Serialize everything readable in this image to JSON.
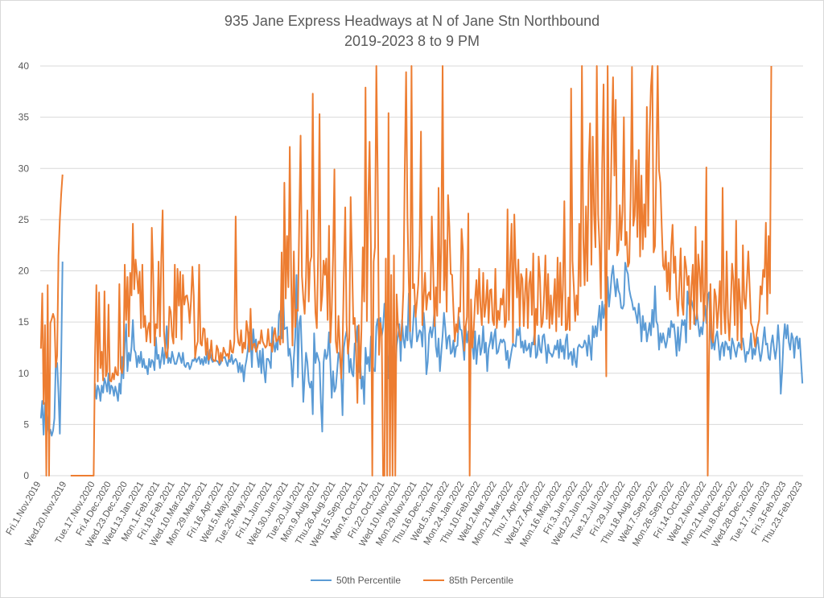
{
  "chart_data": {
    "type": "line",
    "title": "935 Jane Express Headways at N of Jane Stn Northbound",
    "subtitle": "2019-2023 8 to 9 PM",
    "ylim": [
      0,
      40
    ],
    "yticks": [
      0,
      5,
      10,
      15,
      20,
      25,
      30,
      35,
      40
    ],
    "grid": true,
    "legend_position": "bottom",
    "x_tick_labels": [
      "Fri.1.Nov.2019",
      "Wed.20.Nov.2019",
      "Tue.17.Nov.2020",
      "Fri.4.Dec.2020",
      "Wed.23.Dec.2020",
      "Wed.13.Jan.2021",
      "Mon.1.Feb.2021",
      "Fri.19.Feb.2021",
      "Wed.10.Mar.2021",
      "Mon.29.Mar.2021",
      "Fri.16.Apr.2021",
      "Wed.5.May.2021",
      "Tue.25.May.2021",
      "Fri.11.Jun.2021",
      "Wed.30.Jun.2021",
      "Tue.20.Jul.2021",
      "Mon.9.Aug.2021",
      "Thu.26.Aug.2021",
      "Wed.15.Sep.2021",
      "Mon.4.Oct.2021",
      "Fri.22.Oct.2021",
      "Wed.10.Nov.2021",
      "Mon.29.Nov.2021",
      "Thu.16.Dec.2021",
      "Wed.5.Jan.2022",
      "Mon.24.Jan.2022",
      "Thu.10.Feb.2022",
      "Wed.2.Mar.2022",
      "Mon.21.Mar.2022",
      "Thu.7.Apr.2022",
      "Wed.27.Apr.2022",
      "Mon.16.May.2022",
      "Fri.3.Jun.2022",
      "Wed.22.Jun.2022",
      "Tue.12.Jul.2022",
      "Fri.29.Jul.2022",
      "Thu.18.Aug.2022",
      "Wed.7.Sep.2022",
      "Mon.26.Sep.2022",
      "Fri.14.Oct.2022",
      "Wed.2.Nov.2022",
      "Mon.21.Nov.2022",
      "Thu.8.Dec.2022",
      "Wed.28.Dec.2022",
      "Tue.17.Jan.2023",
      "Fri.3.Feb.2023",
      "Thu.23.Feb.2023"
    ],
    "series": [
      {
        "name": "50th Percentile",
        "color": "#5b9bd5",
        "values": [
          5.6,
          7.3,
          4.0,
          7.1,
          6.5,
          5.0,
          3.9,
          4.5,
          3.9,
          4.4,
          5.6,
          11.0,
          11.0,
          8.0,
          4.1,
          11.5,
          20.9,
          null,
          null,
          null,
          null,
          null,
          null,
          null,
          null,
          null,
          null,
          null,
          null,
          null,
          null,
          null,
          null,
          null,
          null,
          null,
          null,
          null,
          null,
          null,
          9.0,
          7.5,
          8.8,
          8.4,
          7.3,
          8.8,
          8.1,
          9.5,
          9.0,
          8.2,
          10.0,
          8.0,
          8.8,
          8.6,
          7.8,
          8.7,
          8.1,
          7.3,
          9.0,
          8.0,
          11.6,
          9.5,
          12.9,
          14.8,
          10.2,
          12.0,
          11.2,
          12.6,
          15.2,
          12.3,
          12.0,
          10.6,
          11.7,
          11.0,
          12.1,
          10.6,
          11.4,
          10.5,
          10.7,
          9.9,
          11.4,
          10.6,
          11.3,
          11.1,
          10.3,
          13.5,
          11.4,
          11.8,
          10.5,
          11.4,
          12.5,
          10.9,
          12.3,
          14.6,
          11.0,
          11.5,
          11.0,
          12.1,
          11.5,
          10.9,
          10.9,
          11.4,
          12.0,
          11.5,
          11.0,
          12.0,
          10.8,
          10.6,
          11.0,
          11.0,
          10.4,
          10.7,
          11.3,
          11.2,
          11.6,
          11.1,
          11.4,
          11.6,
          10.9,
          11.4,
          10.8,
          11.6,
          11.0,
          12.1,
          10.9,
          12.3,
          11.4,
          11.1,
          11.2,
          11.3,
          11.2,
          11.1,
          10.8,
          11.0,
          11.6,
          11.5,
          11.6,
          11.1,
          10.7,
          11.4,
          11.1,
          11.8,
          10.9,
          11.2,
          11.4,
          11.1,
          10.1,
          11.0,
          10.1,
          10.8,
          9.2,
          10.6,
          11.3,
          12.3,
          14.0,
          13.2,
          10.6,
          14.3,
          12.5,
          13.3,
          11.6,
          10.6,
          12.2,
          10.0,
          12.4,
          10.3,
          9.1,
          11.4,
          11.4,
          11.1,
          10.5,
          14.5,
          13.1,
          12.1,
          13.0,
          12.3,
          15.7,
          16.1,
          13.4,
          18.6,
          14.3,
          14.4,
          14.5,
          11.7,
          12.4,
          11.2,
          8.7,
          11.5,
          13.5,
          19.6,
          9.6,
          14.9,
          15.6,
          11.7,
          7.2,
          9.7,
          12.0,
          11.1,
          9.2,
          8.6,
          9.2,
          6.0,
          13.9,
          11.0,
          12.0,
          11.5,
          11.0,
          7.1,
          4.3,
          11.1,
          12.3,
          11.4,
          11.8,
          14.0,
          11.0,
          7.6,
          10.2,
          8.2,
          8.6,
          10.2,
          12.0,
          11.5,
          9.8,
          5.9,
          12.5,
          13.5,
          14.1,
          12.9,
          10.1,
          11.4,
          10.0,
          9.7,
          12.9,
          13.0,
          14.6,
          10.1,
          11.8,
          8.5,
          9.7,
          7.0,
          12.5,
          10.9,
          11.6,
          10.2,
          13.6,
          11.0,
          10.3,
          10.2,
          14.6,
          15.3,
          13.5,
          15.4,
          13.6,
          14.5,
          16.8,
          14.8,
          12.4,
          9.5,
          14.0,
          12.5,
          12.2,
          13.1,
          9.6,
          12.7,
          13.6,
          14.8,
          11.2,
          15.2,
          13.3,
          12.5,
          14.6,
          13.2,
          17.8,
          13.3,
          12.5,
          14.3,
          16.6,
          15.9,
          13.1,
          13.6,
          14.2,
          14.0,
          12.6,
          15.9,
          14.2,
          9.9,
          11.1,
          13.8,
          14.5,
          13.5,
          14.4,
          16.3,
          12.6,
          11.6,
          13.4,
          10.2,
          12.0,
          13.7,
          15.9,
          14.4,
          12.4,
          13.5,
          13.7,
          11.9,
          12.1,
          13.2,
          11.6,
          12.6,
          12.7,
          15.5,
          14.3,
          14.2,
          12.9,
          11.3,
          14.6,
          13.0,
          14.1,
          11.8,
          13.4,
          12.7,
          11.4,
          14.1,
          10.9,
          12.7,
          13.7,
          11.8,
          12.5,
          14.6,
          12.0,
          13.0,
          10.2,
          12.4,
          13.0,
          14.0,
          12.4,
          13.6,
          14.3,
          11.9,
          12.1,
          12.8,
          13.3,
          13.0,
          13.3,
          13.0,
          11.3,
          12.2,
          10.5,
          11.4,
          12.2,
          12.9,
          12.7,
          12.6,
          14.3,
          13.7,
          14.5,
          12.5,
          13.1,
          12.0,
          13.2,
          12.2,
          12.4,
          12.9,
          11.6,
          13.0,
          12.8,
          14.0,
          11.5,
          11.8,
          13.7,
          12.3,
          12.0,
          13.6,
          13.8,
          12.6,
          11.0,
          12.8,
          12.0,
          11.9,
          11.6,
          12.0,
          12.7,
          12.3,
          13.2,
          11.5,
          13.3,
          12.1,
          12.7,
          11.4,
          13.2,
          13.8,
          11.4,
          11.9,
          12.1,
          10.8,
          12.4,
          11.2,
          10.6,
          12.5,
          12.8,
          12.6,
          12.5,
          12.6,
          13.2,
          12.9,
          11.7,
          13.7,
          12.7,
          11.3,
          14.6,
          13.5,
          14.6,
          13.6,
          15.2,
          16.6,
          14.2,
          17.0,
          15.4,
          16.7,
          15.2,
          19.4,
          16.5,
          17.9,
          19.6,
          20.5,
          18.8,
          17.5,
          19.2,
          18.1,
          17.7,
          16.4,
          16.3,
          16.7,
          20.8,
          20.1,
          19.7,
          18.2,
          17.5,
          17.0,
          16.2,
          16.4,
          15.7,
          14.9,
          16.8,
          15.4,
          13.1,
          15.6,
          14.2,
          14.9,
          13.1,
          14.0,
          14.9,
          13.7,
          16.2,
          14.5,
          18.5,
          15.1,
          14.7,
          12.3,
          13.9,
          13.0,
          13.9,
          13.2,
          12.5,
          13.2,
          14.4,
          13.5,
          15.1,
          14.5,
          14.8,
          13.5,
          11.7,
          14.5,
          12.2,
          13.7,
          15.2,
          14.7,
          15.2,
          13.0,
          18.0,
          16.8,
          16.4,
          17.1,
          16.5,
          15.9,
          14.7,
          15.9,
          14.8,
          13.6,
          14.5,
          13.8,
          15.4,
          16.6,
          14.9,
          17.5,
          17.9,
          14.3,
          12.4,
          13.3,
          12.3,
          13.6,
          14.1,
          12.8,
          11.3,
          12.6,
          13.0,
          11.7,
          13.1,
          12.9,
          12.3,
          12.6,
          11.4,
          13.4,
          12.9,
          12.2,
          11.6,
          12.5,
          13.0,
          12.5,
          13.0,
          13.4,
          12.3,
          11.1,
          12.1,
          11.9,
          12.5,
          13.9,
          11.4,
          12.4,
          11.8,
          12.8,
          13.5,
          12.2,
          11.2,
          12.0,
          13.3,
          14.5,
          12.8,
          12.9,
          11.5,
          11.3,
          12.9,
          13.7,
          12.4,
          11.4,
          12.5,
          14.7,
          12.7,
          8.0,
          10.1,
          13.2,
          14.8,
          13.4,
          14.7,
          13.0,
          12.3,
          13.9,
          13.4,
          11.5,
          13.4,
          13.6,
          12.4,
          13.4,
          11.2,
          9.0
        ]
      },
      {
        "name": "85th Percentile",
        "color": "#ed7d31",
        "values": [
          12.4,
          17.8,
          7.0,
          14.7,
          0.0,
          18.6,
          0.0,
          14.9,
          15.3,
          15.8,
          15.3,
          10.6,
          11.7,
          21.5,
          25.0,
          27.5,
          29.4,
          null,
          null,
          null,
          null,
          null,
          0.0,
          0.0,
          0.0,
          0.0,
          0.0,
          0.0,
          0.0,
          0.0,
          0.0,
          0.0,
          0.0,
          0.0,
          0.0,
          0.0,
          0.0,
          0.0,
          0.0,
          0.0,
          11.6,
          18.6,
          9.2,
          17.9,
          10.5,
          12.1,
          9.3,
          18.0,
          9.7,
          10.2,
          16.7,
          9.3,
          9.2,
          10.0,
          9.4,
          10.6,
          9.9,
          9.8,
          18.7,
          10.5,
          10.0,
          10.9,
          20.6,
          15.2,
          19.4,
          13.6,
          19.8,
          17.6,
          24.6,
          18.2,
          21.1,
          19.6,
          17.8,
          19.9,
          14.4,
          20.6,
          14.5,
          15.6,
          13.1,
          14.4,
          14.9,
          13.0,
          24.2,
          19.6,
          12.7,
          14.8,
          14.4,
          20.9,
          13.6,
          21.3,
          25.9,
          14.1,
          12.2,
          11.5,
          12.5,
          16.5,
          16.0,
          13.7,
          12.9,
          20.6,
          13.5,
          20.2,
          16.6,
          19.9,
          13.3,
          19.6,
          16.7,
          17.5,
          17.6,
          16.7,
          14.9,
          17.1,
          20.4,
          17.6,
          11.5,
          12.6,
          13.1,
          20.6,
          12.9,
          12.7,
          14.4,
          14.3,
          11.8,
          13.4,
          11.3,
          11.6,
          13.2,
          11.4,
          11.2,
          11.2,
          12.7,
          12.3,
          11.0,
          12.0,
          11.2,
          12.5,
          12.1,
          11.7,
          11.9,
          11.4,
          13.2,
          12.1,
          12.0,
          13.1,
          25.3,
          14.4,
          13.0,
          12.7,
          14.2,
          12.0,
          13.0,
          12.4,
          15.1,
          14.1,
          12.1,
          16.3,
          12.3,
          12.8,
          12.9,
          12.1,
          12.5,
          13.1,
          12.9,
          14.2,
          13.1,
          12.8,
          12.5,
          12.7,
          14.3,
          12.7,
          12.9,
          12.1,
          13.7,
          14.4,
          13.1,
          13.3,
          13.6,
          12.8,
          21.8,
          13.0,
          28.6,
          17.3,
          23.4,
          18.4,
          32.1,
          19.4,
          12.7,
          21.9,
          14.5,
          16.2,
          16.1,
          24.8,
          33.2,
          19.5,
          17.3,
          15.8,
          19.4,
          25.9,
          17.0,
          20.8,
          21.4,
          37.3,
          20.7,
          15.9,
          14.4,
          21.9,
          35.3,
          16.1,
          17.6,
          21.0,
          19.6,
          21.2,
          15.2,
          24.4,
          13.0,
          16.1,
          21.5,
          29.9,
          13.1,
          12.0,
          15.6,
          12.6,
          9.5,
          12.5,
          19.7,
          26.2,
          14.8,
          11.9,
          13.4,
          27.2,
          21.1,
          14.8,
          15.4,
          12.3,
          7.1,
          14.7,
          9.5,
          14.4,
          22.3,
          17.0,
          37.9,
          15.1,
          26.6,
          32.6,
          22.0,
          0.0,
          20.9,
          22.3,
          44.8,
          29.2,
          11.8,
          14.9,
          13.8,
          0.0,
          0.0,
          21.2,
          0.0,
          35.4,
          0.0,
          19.6,
          0.0,
          21.5,
          0.0,
          17.7,
          14.8,
          13.7,
          13.2,
          14.8,
          18.1,
          29.7,
          39.4,
          25.3,
          18.9,
          14.1,
          40.4,
          18.3,
          18.7,
          15.5,
          17.0,
          18.7,
          22.5,
          33.6,
          14.7,
          17.4,
          19.8,
          16.2,
          17.6,
          17.9,
          17.2,
          25.3,
          20.4,
          14.6,
          18.4,
          15.6,
          28.1,
          16.9,
          22.6,
          41.3,
          18.1,
          23.0,
          16.0,
          27.4,
          24.3,
          19.7,
          19.6,
          16.2,
          13.1,
          14.8,
          14.0,
          16.4,
          16.0,
          24.1,
          22.0,
          12.2,
          14.5,
          15.5,
          25.6,
          0.0,
          17.2,
          12.5,
          14.3,
          17.2,
          19.1,
          15.8,
          20.2,
          16.5,
          14.7,
          19.8,
          15.5,
          16.8,
          19.1,
          14.9,
          18.1,
          18.2,
          15.2,
          14.7,
          20.2,
          14.4,
          16.1,
          15.2,
          17.3,
          16.7,
          18.2,
          14.5,
          15.1,
          26.0,
          15.2,
          20.8,
          24.6,
          13.0,
          25.5,
          20.4,
          17.4,
          21.1,
          14.6,
          19.7,
          19.2,
          14.6,
          17.9,
          20.2,
          14.4,
          18.8,
          19.9,
          15.7,
          21.7,
          12.8,
          16.3,
          14.7,
          21.4,
          19.3,
          14.5,
          15.0,
          17.6,
          21.5,
          15.3,
          19.7,
          14.4,
          17.6,
          14.8,
          16.9,
          19.2,
          14.1,
          21.3,
          15.5,
          20.8,
          14.7,
          18.7,
          26.8,
          14.2,
          14.3,
          17.4,
          14.2,
          37.8,
          21.0,
          18.4,
          15.1,
          17.6,
          15.7,
          24.6,
          18.5,
          41.6,
          23.2,
          18.6,
          26.3,
          19.0,
          30.3,
          34.4,
          20.6,
          33.1,
          25.5,
          22.3,
          40.8,
          25.5,
          22.4,
          17.3,
          30.4,
          38.2,
          22.1,
          9.7,
          40.4,
          22.1,
          25.0,
          32.8,
          38.9,
          29.3,
          36.7,
          21.5,
          22.0,
          26.4,
          23.0,
          25.9,
          35.0,
          22.5,
          23.8,
          20.4,
          20.8,
          27.2,
          39.9,
          24.4,
          25.4,
          30.8,
          23.3,
          31.8,
          21.4,
          29.3,
          22.1,
          26.5,
          23.3,
          36.0,
          24.4,
          33.2,
          37.9,
          40.2,
          21.8,
          22.4,
          30.2,
          40.7,
          29.8,
          28.6,
          24.3,
          20.5,
          20.1,
          21.9,
          18.0,
          20.8,
          17.2,
          22.3,
          24.5,
          19.8,
          21.4,
          17.4,
          15.6,
          18.6,
          22.2,
          16.7,
          15.7,
          21.4,
          20.4,
          18.6,
          19.5,
          14.3,
          18.5,
          20.6,
          14.8,
          24.3,
          15.3,
          21.6,
          19.9,
          17.0,
          22.9,
          15.1,
          18.0,
          30.1,
          0.0,
          11.7,
          18.7,
          13.5,
          13.0,
          18.2,
          17.5,
          14.4,
          16.4,
          19.0,
          13.8,
          28.1,
          16.2,
          13.9,
          21.9,
          15.4,
          13.2,
          16.5,
          20.7,
          19.0,
          14.7,
          24.9,
          13.2,
          19.2,
          16.9,
          12.3,
          22.5,
          17.3,
          16.3,
          19.0,
          21.9,
          18.4,
          14.9,
          14.5,
          13.8,
          12.6,
          13.7,
          14.6,
          15.2,
          18.5,
          17.7,
          20.1,
          19.4,
          24.7,
          15.8,
          23.4,
          17.8,
          40.0
        ]
      }
    ]
  }
}
